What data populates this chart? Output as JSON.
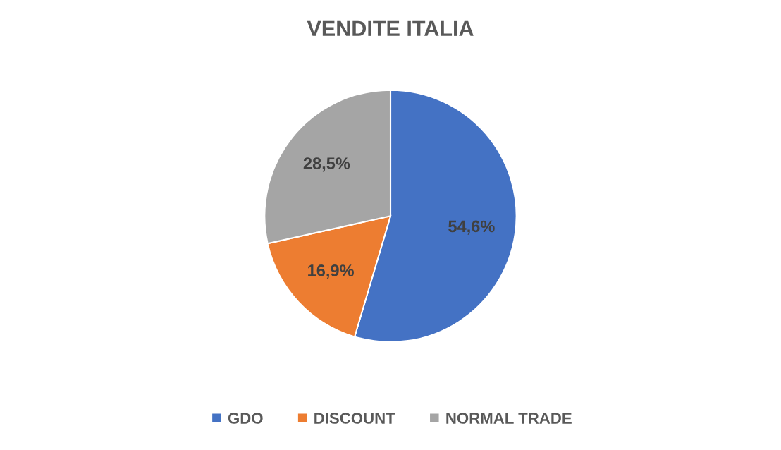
{
  "chart_data": {
    "type": "pie",
    "title": "VENDITE ITALIA",
    "categories": [
      "GDO",
      "DISCOUNT",
      "NORMAL TRADE"
    ],
    "values": [
      54.6,
      16.9,
      28.5
    ],
    "colors": [
      "#4472c4",
      "#ed7d31",
      "#a5a5a5"
    ],
    "value_labels": [
      "54,6%",
      "16,9%",
      "28,5%"
    ],
    "legend": "bottom"
  }
}
